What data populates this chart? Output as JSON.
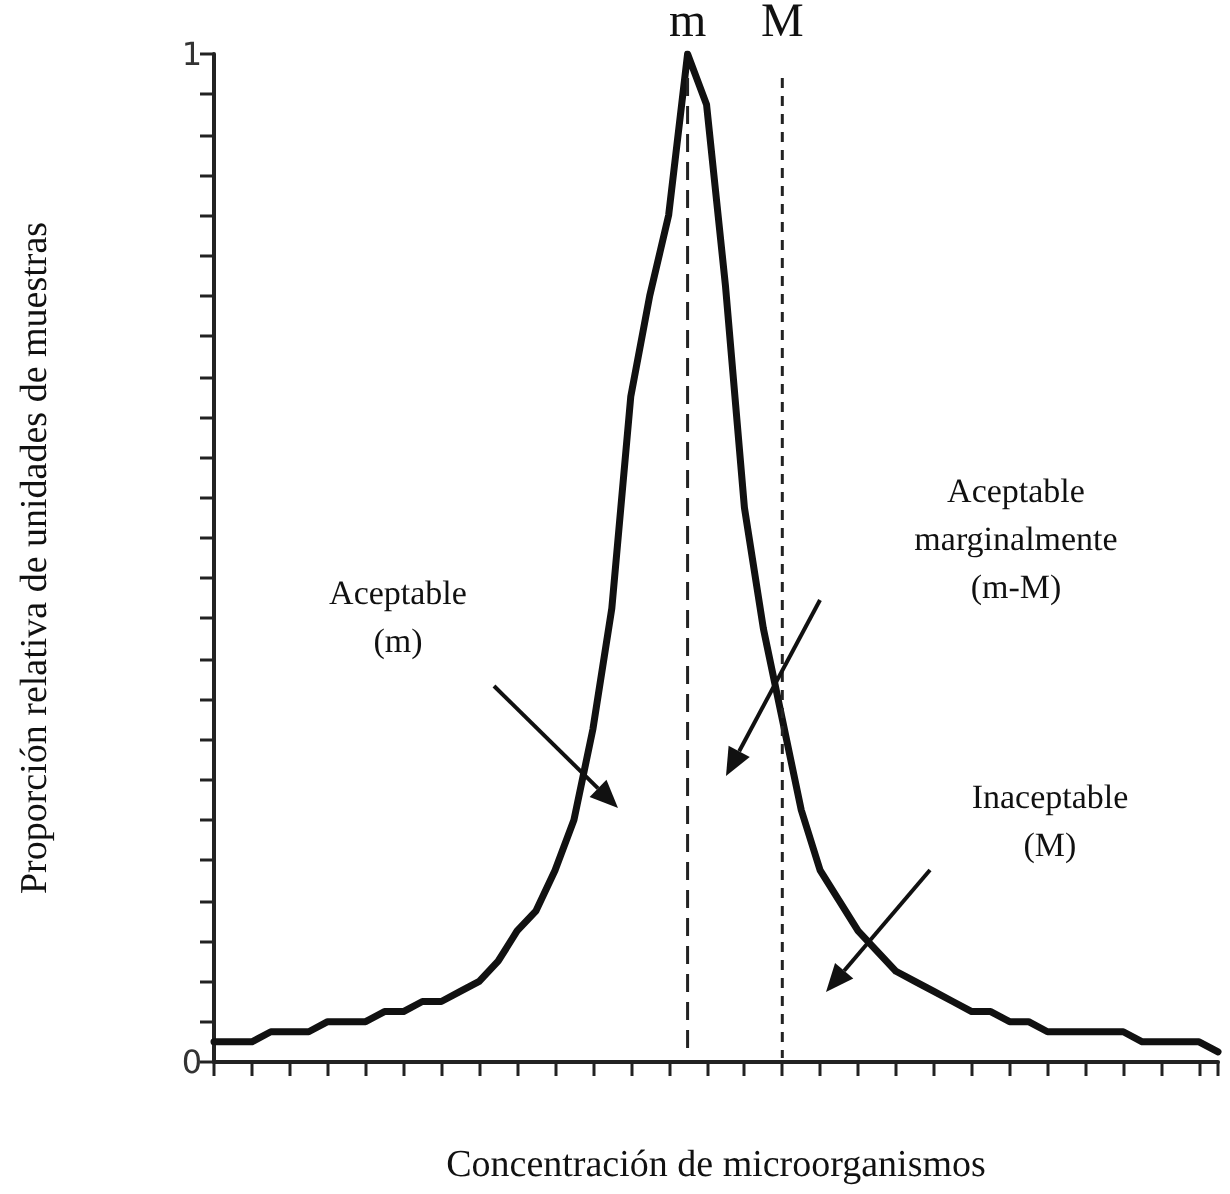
{
  "chart_data": {
    "type": "line",
    "xlabel": "Concentración de microorganismos",
    "ylabel": "Proporción relativa de unidades de muestras",
    "categories": [
      null,
      null,
      null,
      null,
      null,
      null,
      null,
      null,
      null,
      null,
      null,
      null,
      null,
      null,
      null,
      null,
      null,
      null,
      null,
      null,
      null,
      null,
      null,
      null,
      null,
      null,
      null,
      null,
      null,
      null,
      null,
      null,
      null,
      null,
      null,
      null,
      null,
      null,
      null,
      null,
      null,
      null,
      null,
      null,
      null,
      null,
      null,
      null,
      null,
      null,
      null,
      null,
      null,
      null
    ],
    "series": [
      {
        "color": "#111111",
        "values": [
          0.02,
          0.02,
          0.02,
          0.03,
          0.03,
          0.03,
          0.04,
          0.04,
          0.04,
          0.05,
          0.05,
          0.06,
          0.06,
          0.07,
          0.08,
          0.1,
          0.13,
          0.15,
          0.19,
          0.24,
          0.33,
          0.45,
          0.66,
          0.76,
          0.84,
          1,
          0.95,
          0.77,
          0.55,
          0.43,
          0.34,
          0.25,
          0.19,
          0.16,
          0.13,
          0.11,
          0.09,
          0.08,
          0.07,
          0.06,
          0.05,
          0.05,
          0.04,
          0.04,
          0.03,
          0.03,
          0.03,
          0.03,
          0.03,
          0.02,
          0.02,
          0.02,
          0.02,
          0.01
        ]
      }
    ],
    "ylim": [
      0,
      1
    ],
    "yticks": [
      0,
      {
        "value": 0.04,
        "label": null
      },
      {
        "value": 0.08,
        "label": null
      },
      {
        "value": 0.12,
        "label": null
      },
      {
        "value": 0.16,
        "label": null
      },
      {
        "value": 0.2,
        "label": null
      },
      {
        "value": 0.24,
        "label": null
      },
      {
        "value": 0.28,
        "label": null
      },
      {
        "value": 0.32,
        "label": null
      },
      {
        "value": 0.36,
        "label": null
      },
      {
        "value": 0.4,
        "label": null
      },
      {
        "value": 0.44,
        "label": null
      },
      {
        "value": 0.48,
        "label": null
      },
      {
        "value": 0.52,
        "label": null
      },
      {
        "value": 0.56,
        "label": null
      },
      {
        "value": 0.6,
        "label": null
      },
      {
        "value": 0.64,
        "label": null
      },
      {
        "value": 0.68,
        "label": null
      },
      {
        "value": 0.72,
        "label": null
      },
      {
        "value": 0.76,
        "label": null
      },
      {
        "value": 0.8,
        "label": null
      },
      {
        "value": 0.84,
        "label": null
      },
      {
        "value": 0.88,
        "label": null
      },
      {
        "value": 0.92,
        "label": null
      },
      {
        "value": 0.96,
        "label": null
      },
      1
    ],
    "grid": false,
    "marker": "none",
    "line_style": "solid",
    "annotations": [
      "m",
      "M",
      "Aceptable\n(m)",
      "Aceptable\nmarginalmente\n(m-M)",
      "Inaceptable\n(M)"
    ]
  }
}
